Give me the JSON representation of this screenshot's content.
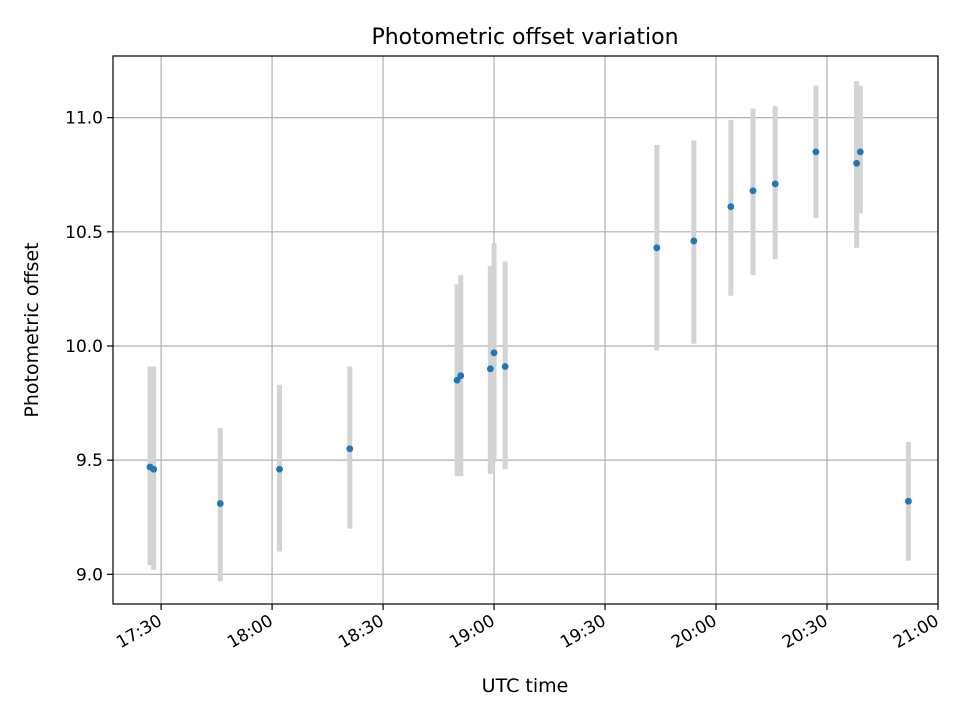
{
  "chart_data": {
    "type": "scatter",
    "title": "Photometric offset variation",
    "xlabel": "UTC time",
    "ylabel": "Photometric offset",
    "x_unit": "minutes",
    "xlim": [
      "17:17",
      "21:00"
    ],
    "ylim": [
      8.87,
      11.27
    ],
    "x_ticks": [
      "17:30",
      "18:00",
      "18:30",
      "19:00",
      "19:30",
      "20:00",
      "20:30",
      "21:00"
    ],
    "y_ticks": [
      9.0,
      9.5,
      10.0,
      10.5,
      11.0
    ],
    "y_tick_labels": [
      "9.0",
      "9.5",
      "10.0",
      "10.5",
      "11.0"
    ],
    "grid": true,
    "legend": "none",
    "marker_color": "#1f77b4",
    "errorbar_color": "#d3d3d3",
    "points": [
      {
        "x": "17:27",
        "y": 9.47,
        "ylow": 9.04,
        "yhigh": 9.91
      },
      {
        "x": "17:28",
        "y": 9.46,
        "ylow": 9.02,
        "yhigh": 9.91
      },
      {
        "x": "17:46",
        "y": 9.31,
        "ylow": 8.97,
        "yhigh": 9.64
      },
      {
        "x": "18:02",
        "y": 9.46,
        "ylow": 9.1,
        "yhigh": 9.83
      },
      {
        "x": "18:21",
        "y": 9.55,
        "ylow": 9.2,
        "yhigh": 9.91
      },
      {
        "x": "18:50",
        "y": 9.85,
        "ylow": 9.43,
        "yhigh": 10.27
      },
      {
        "x": "18:51",
        "y": 9.87,
        "ylow": 9.43,
        "yhigh": 10.31
      },
      {
        "x": "18:59",
        "y": 9.9,
        "ylow": 9.44,
        "yhigh": 10.35
      },
      {
        "x": "19:00",
        "y": 9.97,
        "ylow": 9.49,
        "yhigh": 10.45
      },
      {
        "x": "19:03",
        "y": 9.91,
        "ylow": 9.46,
        "yhigh": 10.37
      },
      {
        "x": "19:44",
        "y": 10.43,
        "ylow": 9.98,
        "yhigh": 10.88
      },
      {
        "x": "19:54",
        "y": 10.46,
        "ylow": 10.01,
        "yhigh": 10.9
      },
      {
        "x": "20:04",
        "y": 10.61,
        "ylow": 10.22,
        "yhigh": 10.99
      },
      {
        "x": "20:10",
        "y": 10.68,
        "ylow": 10.31,
        "yhigh": 11.04
      },
      {
        "x": "20:16",
        "y": 10.71,
        "ylow": 10.38,
        "yhigh": 11.05
      },
      {
        "x": "20:27",
        "y": 10.85,
        "ylow": 10.56,
        "yhigh": 11.14
      },
      {
        "x": "20:38",
        "y": 10.8,
        "ylow": 10.43,
        "yhigh": 11.16
      },
      {
        "x": "20:39",
        "y": 10.85,
        "ylow": 10.58,
        "yhigh": 11.14
      },
      {
        "x": "20:52",
        "y": 9.32,
        "ylow": 9.06,
        "yhigh": 9.58
      }
    ]
  }
}
